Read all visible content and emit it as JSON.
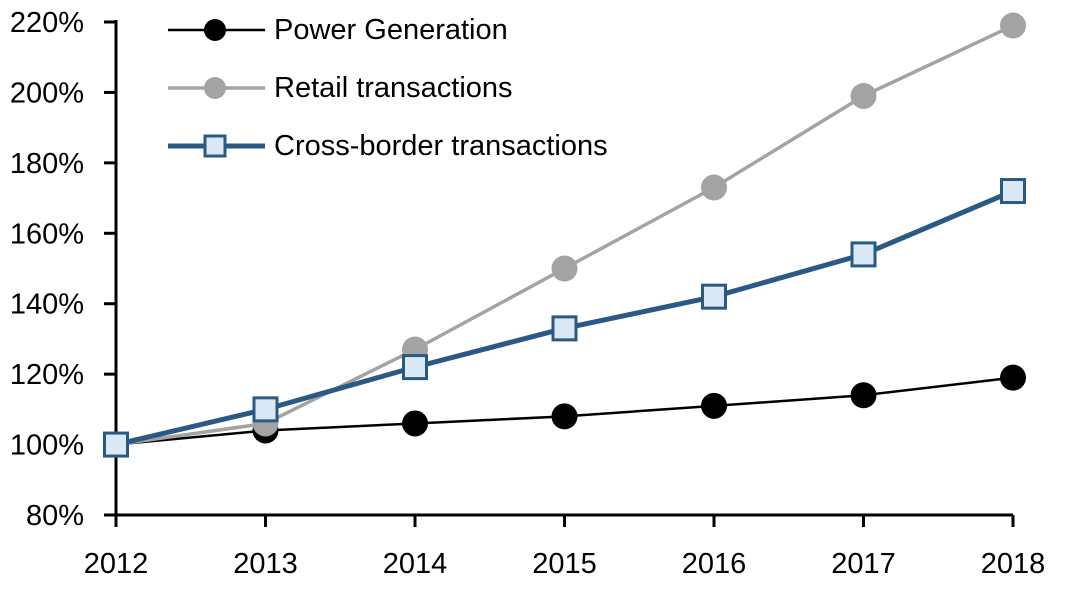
{
  "figure": {
    "background_color": "#ffffff",
    "axis_color": "#000000"
  },
  "chart_data": {
    "type": "line",
    "title": "",
    "xlabel": "",
    "ylabel": "",
    "grid": false,
    "x": [
      2012,
      2013,
      2014,
      2015,
      2016,
      2017,
      2018
    ],
    "x_tick_labels": [
      "2012",
      "2013",
      "2014",
      "2015",
      "2016",
      "2017",
      "2018"
    ],
    "y_axis": {
      "min": 80,
      "max": 220,
      "step": 20,
      "format": "percent",
      "tick_labels": [
        "80%",
        "100%",
        "120%",
        "140%",
        "160%",
        "180%",
        "200%",
        "220%"
      ]
    },
    "legend_position": "top-left",
    "series": [
      {
        "name": "Power Generation",
        "values": [
          100,
          104,
          106,
          108,
          111,
          114,
          119
        ],
        "color": "#000000",
        "marker": "circle",
        "marker_fill": "#000000",
        "marker_radius": 13,
        "line_width": 2.5
      },
      {
        "name": "Retail transactions",
        "values": [
          100,
          106,
          127,
          150,
          173,
          199,
          219
        ],
        "color": "#a3a3a3",
        "marker": "circle",
        "marker_fill": "#a3a3a3",
        "marker_radius": 13,
        "line_width": 3.5
      },
      {
        "name": "Cross-border transactions",
        "values": [
          100,
          110,
          122,
          133,
          142,
          154,
          172
        ],
        "color": "#2a5a84",
        "marker": "square",
        "marker_fill": "#dbe9f6",
        "marker_size": 23,
        "line_width": 5
      }
    ]
  }
}
